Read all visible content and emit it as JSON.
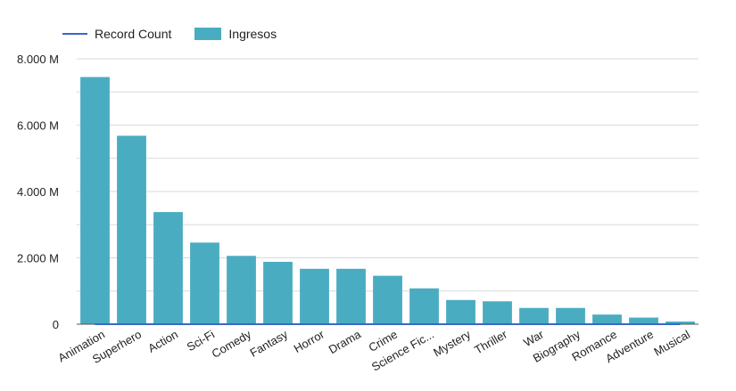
{
  "legend": {
    "line_label": "Record Count",
    "bar_label": "Ingresos"
  },
  "colors": {
    "bar": "#4aacc1",
    "line": "#3a66c9",
    "grid": "#d9d9d9",
    "axis_text": "#222222"
  },
  "chart_data": {
    "type": "bar",
    "categories": [
      "Animation",
      "Superhero",
      "Action",
      "Sci-Fi",
      "Comedy",
      "Fantasy",
      "Horror",
      "Drama",
      "Crime",
      "Science Fic...",
      "Mystery",
      "Thriller",
      "War",
      "Biography",
      "Romance",
      "Adventure",
      "Musical"
    ],
    "series": [
      {
        "name": "Ingresos",
        "values": [
          7450,
          5680,
          3380,
          2460,
          2060,
          1880,
          1670,
          1670,
          1460,
          1080,
          730,
          690,
          490,
          490,
          290,
          200,
          80
        ]
      },
      {
        "name": "Record Count",
        "values": [
          0,
          0,
          0,
          0,
          0,
          0,
          0,
          0,
          0,
          0,
          0,
          0,
          0,
          0,
          0,
          0,
          0
        ]
      }
    ],
    "ylim": [
      0,
      8000
    ],
    "yticks": [
      0,
      2000,
      4000,
      6000,
      8000
    ],
    "ytick_labels": [
      "0",
      "2.000 M",
      "4.000 M",
      "6.000 M",
      "8.000 M"
    ],
    "minor_gridlines": [
      1000,
      3000,
      5000,
      7000
    ],
    "grid": true,
    "legend_position": "top-left",
    "xlabel": "",
    "ylabel": ""
  }
}
